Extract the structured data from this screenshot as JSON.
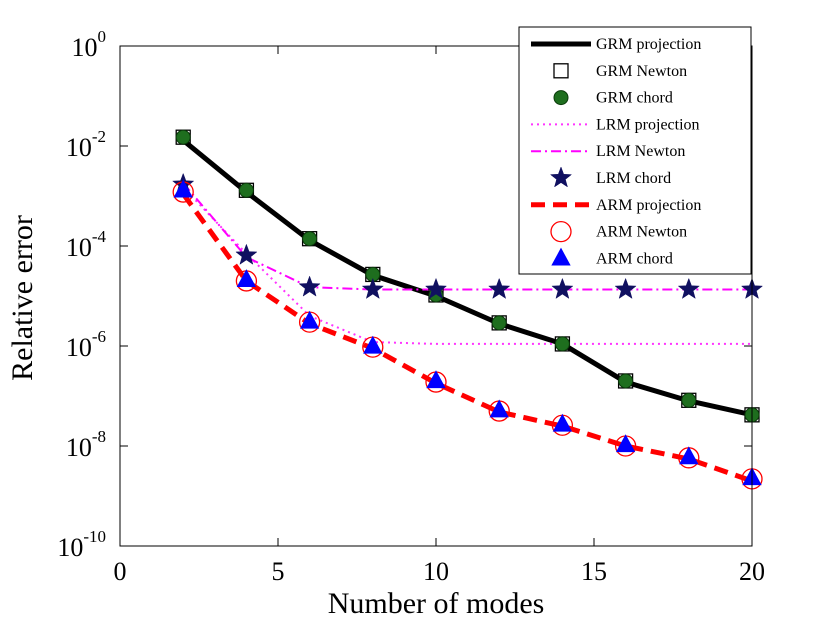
{
  "chart_data": {
    "type": "line",
    "title": "",
    "xlabel": "Number of modes",
    "ylabel": "Relative error",
    "xlim": [
      0,
      20
    ],
    "ylim_log10": [
      -10,
      0
    ],
    "y_scale": "log",
    "x_ticks": [
      0,
      5,
      10,
      15,
      20
    ],
    "x_tick_labels": [
      "0",
      "5",
      "10",
      "15",
      "20"
    ],
    "y_ticks_log10": [
      0,
      -2,
      -4,
      -6,
      -8,
      -10
    ],
    "y_tick_labels": [
      {
        "base": "10",
        "exp": "0"
      },
      {
        "base": "10",
        "exp": "-2"
      },
      {
        "base": "10",
        "exp": "-4"
      },
      {
        "base": "10",
        "exp": "-6"
      },
      {
        "base": "10",
        "exp": "-8"
      },
      {
        "base": "10",
        "exp": "-10"
      }
    ],
    "grid": false,
    "legend_position": "top-right",
    "x": [
      2,
      4,
      6,
      8,
      10,
      12,
      14,
      16,
      18,
      20
    ],
    "series": [
      {
        "name": "GRM projection",
        "style": "line-solid",
        "color": "#000000",
        "values": [
          0.013,
          0.0012,
          0.00013,
          2.6e-05,
          1e-05,
          2.8e-06,
          1.1e-06,
          1.9e-07,
          8e-08,
          4.2e-08
        ]
      },
      {
        "name": "GRM Newton",
        "style": "marker-square",
        "color": "#000000",
        "values": [
          0.015,
          0.0013,
          0.00014,
          2.7e-05,
          1.05e-05,
          2.9e-06,
          1.1e-06,
          2e-07,
          8.2e-08,
          4.2e-08
        ]
      },
      {
        "name": "GRM chord",
        "style": "marker-circle-filled",
        "color": "#1e6e1e",
        "values": [
          0.015,
          0.0013,
          0.00014,
          2.7e-05,
          1.05e-05,
          2.9e-06,
          1.1e-06,
          2e-07,
          8.2e-08,
          4.2e-08
        ]
      },
      {
        "name": "LRM projection",
        "style": "line-dotted",
        "color": "#ff33ff",
        "values": [
          0.0015,
          7e-05,
          4e-06,
          1.2e-06,
          1.1e-06,
          1.1e-06,
          1.1e-06,
          1.1e-06,
          1.1e-06,
          1.1e-06
        ]
      },
      {
        "name": "LRM Newton",
        "style": "line-dashdot",
        "color": "#ff00ff",
        "values": [
          0.0018,
          6e-05,
          1.5e-05,
          1.35e-05,
          1.35e-05,
          1.35e-05,
          1.35e-05,
          1.35e-05,
          1.35e-05,
          1.35e-05
        ]
      },
      {
        "name": "LRM chord",
        "style": "marker-star",
        "color": "#101060",
        "values": [
          0.0017,
          6.5e-05,
          1.5e-05,
          1.35e-05,
          1.35e-05,
          1.35e-05,
          1.35e-05,
          1.35e-05,
          1.35e-05,
          1.35e-05
        ]
      },
      {
        "name": "ARM projection",
        "style": "line-dashed",
        "color": "#ff0000",
        "values": [
          0.0011,
          2e-05,
          2.8e-06,
          9e-07,
          1.8e-07,
          4.8e-08,
          2.5e-08,
          1e-08,
          5.5e-09,
          2e-09
        ]
      },
      {
        "name": "ARM Newton",
        "style": "marker-circle-open",
        "color": "#ff0000",
        "values": [
          0.0012,
          2e-05,
          3e-06,
          9.5e-07,
          1.9e-07,
          5e-08,
          2.6e-08,
          1e-08,
          5.8e-09,
          2.2e-09
        ]
      },
      {
        "name": "ARM chord",
        "style": "marker-triangle",
        "color": "#0000ff",
        "values": [
          0.0013,
          2.1e-05,
          3.1e-06,
          9.8e-07,
          2e-07,
          5.2e-08,
          2.7e-08,
          1.05e-08,
          6e-09,
          2.3e-09
        ]
      }
    ]
  }
}
